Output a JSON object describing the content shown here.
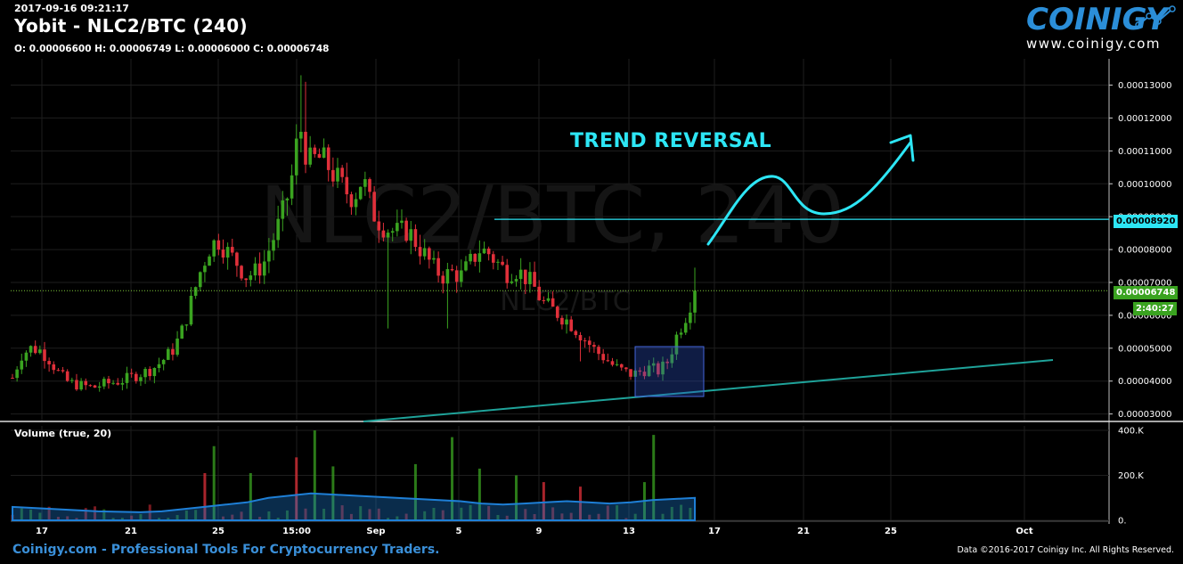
{
  "header": {
    "datetime": "2017-09-16 09:21:17",
    "title": "Yobit - NLC2/BTC (240)",
    "ohlc": "O: 0.00006600 H: 0.00006749 L: 0.00006000 C: 0.00006748"
  },
  "brand": {
    "name": "COINIGY",
    "url": "www.coinigy.com"
  },
  "watermark": {
    "main": "NLC2/BTC, 240",
    "sub": "NLC2/BTC"
  },
  "annotations": {
    "trend_reversal": "TREND REVERSAL"
  },
  "tags": {
    "level": "0.00008920",
    "last_price": "0.00006748",
    "countdown": "2:40:27"
  },
  "volume_pane": {
    "label": "Volume (true, 20)"
  },
  "footer": {
    "left": "Coinigy.com - Professional Tools For Cryptocurrency Traders.",
    "right": "Data ©2016-2017 Coinigy Inc. All Rights Reserved."
  },
  "colors": {
    "up": "#3aa320",
    "down": "#e0303a",
    "cyan": "#2de6f5",
    "brand": "#2b8ed8",
    "trendline": "#1fa39a",
    "volume_ma": "#1e7fd6"
  },
  "chart_data": {
    "type": "candlestick",
    "x_tick_labels": [
      "17",
      "21",
      "25",
      "15:00",
      "Sep",
      "5",
      "9",
      "13",
      "17",
      "21",
      "25",
      "Oct"
    ],
    "price_axis": {
      "ticks": [
        "0.00003000",
        "0.00004000",
        "0.00005000",
        "0.00006000",
        "0.00007000",
        "0.00008000",
        "0.00009000",
        "0.00010000",
        "0.00011000",
        "0.00012000",
        "0.00013000"
      ],
      "range": [
        2.8e-05,
        0.000138
      ]
    },
    "volume_axis": {
      "ticks": [
        "0.",
        "200.K",
        "400.K"
      ],
      "range": [
        0,
        420000
      ]
    },
    "close_path": [
      4.1e-05,
      4.8e-05,
      5e-05,
      4.95e-05,
      4.7e-05,
      4.3e-05,
      4e-05,
      3.9e-05,
      3.85e-05,
      3.8e-05,
      3.9e-05,
      3.95e-05,
      4e-05,
      4.1e-05,
      4.2e-05,
      4.3e-05,
      4.45e-05,
      4.7e-05,
      5e-05,
      5.6e-05,
      6.5e-05,
      7.4e-05,
      8.1e-05,
      8.3e-05,
      7.9e-05,
      7.6e-05,
      7.2e-05,
      7.3e-05,
      7.6e-05,
      8.3e-05,
      9e-05,
      0.0001,
      0.000118,
      0.000106,
      0.000108,
      0.000106,
      0.000102,
      9.8e-05,
      9.6e-05,
      0.000102,
      9.2e-05,
      8.8e-05,
      8.6e-05,
      8.5e-05,
      8.6e-05,
      8.2e-05,
      7.8e-05,
      7.4e-05,
      7.2e-05,
      7.3e-05,
      7.2e-05,
      7.6e-05,
      8e-05,
      7.9e-05,
      7.6e-05,
      7.3e-05,
      7.4e-05,
      7.2e-05,
      6.9e-05,
      6.4e-05,
      6.2e-05,
      6e-05,
      5.8e-05,
      5.5e-05,
      5.2e-05,
      4.9e-05,
      4.7e-05,
      4.45e-05,
      4.3e-05,
      4.2e-05,
      4.3e-05,
      4.4e-05,
      4.3e-05,
      4.6e-05,
      5.4e-05,
      6e-05,
      6.75e-05
    ],
    "volume_ma_path": [
      60000,
      55000,
      50000,
      45000,
      40000,
      38000,
      36000,
      40000,
      50000,
      60000,
      70000,
      80000,
      100000,
      110000,
      120000,
      115000,
      110000,
      105000,
      100000,
      95000,
      90000,
      85000,
      75000,
      70000,
      75000,
      80000,
      85000,
      80000,
      75000,
      80000,
      90000,
      95000,
      100000
    ],
    "volume_spikes": [
      {
        "bar": 21,
        "value": 210000,
        "dir": "down"
      },
      {
        "bar": 22,
        "value": 330000,
        "dir": "up"
      },
      {
        "bar": 26,
        "value": 210000,
        "dir": "up"
      },
      {
        "bar": 31,
        "value": 280000,
        "dir": "down"
      },
      {
        "bar": 33,
        "value": 400000,
        "dir": "up"
      },
      {
        "bar": 35,
        "value": 240000,
        "dir": "up"
      },
      {
        "bar": 44,
        "value": 250000,
        "dir": "up"
      },
      {
        "bar": 48,
        "value": 370000,
        "dir": "up"
      },
      {
        "bar": 51,
        "value": 230000,
        "dir": "up"
      },
      {
        "bar": 55,
        "value": 200000,
        "dir": "up"
      },
      {
        "bar": 58,
        "value": 170000,
        "dir": "down"
      },
      {
        "bar": 62,
        "value": 150000,
        "dir": "down"
      },
      {
        "bar": 69,
        "value": 170000,
        "dir": "up"
      },
      {
        "bar": 70,
        "value": 380000,
        "dir": "up"
      },
      {
        "bar": 76,
        "value": 150000,
        "dir": "up"
      }
    ],
    "levels": [
      {
        "kind": "horizontal",
        "value": 8.92e-05,
        "color": "cyan"
      },
      {
        "kind": "last_price",
        "value": 6.748e-05,
        "color": "green"
      }
    ]
  }
}
